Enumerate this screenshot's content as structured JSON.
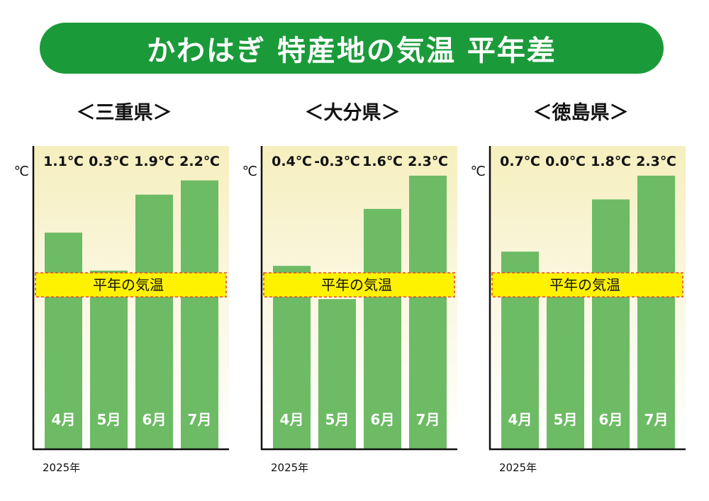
{
  "title": "かわはぎ 特産地の気温 平年差",
  "colors": {
    "banner": "#1b9a3a",
    "bar": "#6dbb65",
    "band_fill": "#fff200",
    "band_border": "#e8452c"
  },
  "chart_data": [
    {
      "type": "bar",
      "title": "＜三重県＞",
      "unit": "℃",
      "baseline_label": "平年の気温",
      "xlabel": "2025年",
      "categories": [
        "4月",
        "5月",
        "6月",
        "7月"
      ],
      "values": [
        1.1,
        0.3,
        1.9,
        2.2
      ],
      "value_labels": [
        "1.1℃",
        "0.3℃",
        "1.9℃",
        "2.2℃"
      ]
    },
    {
      "type": "bar",
      "title": "＜大分県＞",
      "unit": "℃",
      "baseline_label": "平年の気温",
      "xlabel": "2025年",
      "categories": [
        "4月",
        "5月",
        "6月",
        "7月"
      ],
      "values": [
        0.4,
        -0.3,
        1.6,
        2.3
      ],
      "value_labels": [
        "0.4℃",
        "-0.3℃",
        "1.6℃",
        "2.3℃"
      ]
    },
    {
      "type": "bar",
      "title": "＜徳島県＞",
      "unit": "℃",
      "baseline_label": "平年の気温",
      "xlabel": "2025年",
      "categories": [
        "4月",
        "5月",
        "6月",
        "7月"
      ],
      "values": [
        0.7,
        0.0,
        1.8,
        2.3
      ],
      "value_labels": [
        "0.7℃",
        "0.0℃",
        "1.8℃",
        "2.3℃"
      ]
    }
  ]
}
